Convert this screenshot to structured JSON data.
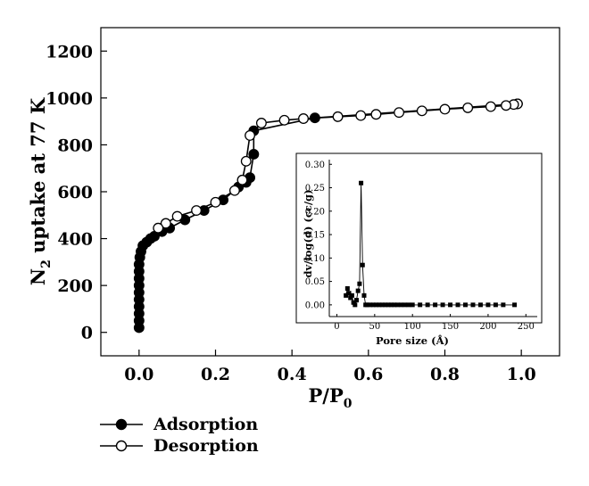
{
  "chart_data": [
    {
      "type": "line",
      "title": "",
      "xlabel_base": "P/P",
      "xlabel_sub": "0",
      "ylabel_pre": "N",
      "ylabel_sub": "2",
      "ylabel_post": " uptake at 77 K",
      "xlim": [
        -0.1,
        1.1
      ],
      "ylim": [
        -100,
        1300
      ],
      "xticks": [
        0.0,
        0.2,
        0.4,
        0.6,
        0.8,
        1.0
      ],
      "xtick_labels": [
        "0.0",
        "0.2",
        "0.4",
        "0.6",
        "0.8",
        "1.0"
      ],
      "yticks": [
        0,
        200,
        400,
        600,
        800,
        1000,
        1200
      ],
      "ytick_labels": [
        "0",
        "200",
        "400",
        "600",
        "800",
        "1000",
        "1200"
      ],
      "grid": false,
      "legend_position": "bottom-left",
      "series": [
        {
          "name": "Adsorption",
          "marker": "filled-circle",
          "color": "#000000",
          "x": [
            0.0,
            0.0,
            0.0,
            0.0,
            0.0,
            0.0,
            0.0,
            0.0,
            0.0,
            0.0,
            0.002,
            0.005,
            0.01,
            0.02,
            0.03,
            0.04,
            0.06,
            0.08,
            0.12,
            0.17,
            0.22,
            0.26,
            0.28,
            0.29,
            0.3,
            0.3,
            0.46,
            0.99
          ],
          "y": [
            20,
            50,
            80,
            110,
            140,
            170,
            200,
            230,
            260,
            290,
            320,
            345,
            370,
            385,
            400,
            410,
            430,
            445,
            480,
            520,
            565,
            620,
            640,
            660,
            760,
            860,
            915,
            975
          ]
        },
        {
          "name": "Desorption",
          "marker": "open-circle",
          "color": "#000000",
          "x": [
            0.99,
            0.98,
            0.96,
            0.92,
            0.86,
            0.8,
            0.74,
            0.68,
            0.62,
            0.58,
            0.52,
            0.43,
            0.38,
            0.32,
            0.29,
            0.28,
            0.27,
            0.25,
            0.2,
            0.15,
            0.1,
            0.07,
            0.05
          ],
          "y": [
            975,
            972,
            968,
            963,
            958,
            952,
            945,
            938,
            930,
            925,
            920,
            912,
            905,
            893,
            840,
            730,
            650,
            605,
            555,
            520,
            495,
            465,
            445
          ]
        }
      ]
    },
    {
      "type": "line",
      "title": "",
      "xlabel": "Pore size (Å)",
      "ylabel": "dv/log(d) (cc/g)",
      "xlim": [
        -10,
        265
      ],
      "ylim": [
        -0.025,
        0.31
      ],
      "xticks": [
        0,
        50,
        100,
        150,
        200,
        250
      ],
      "xtick_labels": [
        "0",
        "50",
        "100",
        "150",
        "200",
        "250"
      ],
      "yticks": [
        0.0,
        0.05,
        0.1,
        0.15,
        0.2,
        0.25,
        0.3
      ],
      "ytick_labels": [
        "0.00",
        "0.05",
        "0.10",
        "0.15",
        "0.20",
        "0.25",
        "0.30"
      ],
      "grid": false,
      "series": [
        {
          "marker": "filled-square",
          "color": "#000000",
          "x": [
            12,
            14,
            16,
            18,
            20,
            22,
            24,
            26,
            28,
            30,
            32,
            34,
            36,
            38,
            40,
            44,
            48,
            52,
            56,
            60,
            64,
            68,
            72,
            76,
            80,
            85,
            90,
            95,
            100,
            110,
            120,
            130,
            140,
            150,
            160,
            170,
            180,
            190,
            200,
            210,
            220,
            235
          ],
          "y": [
            0.02,
            0.035,
            0.025,
            0.015,
            0.02,
            0.005,
            0.0,
            0.01,
            0.03,
            0.045,
            0.26,
            0.085,
            0.02,
            0.0,
            0.0,
            0.0,
            0.0,
            0.0,
            0.0,
            0.0,
            0.0,
            0.0,
            0.0,
            0.0,
            0.0,
            0.0,
            0.0,
            0.0,
            0.0,
            0.0,
            0.0,
            0.0,
            0.0,
            0.0,
            0.0,
            0.0,
            0.0,
            0.0,
            0.0,
            0.0,
            0.0,
            0.0
          ]
        }
      ]
    }
  ],
  "legend": {
    "items": [
      {
        "label": "Adsorption",
        "marker": "filled-circle"
      },
      {
        "label": "Desorption",
        "marker": "open-circle"
      }
    ]
  }
}
